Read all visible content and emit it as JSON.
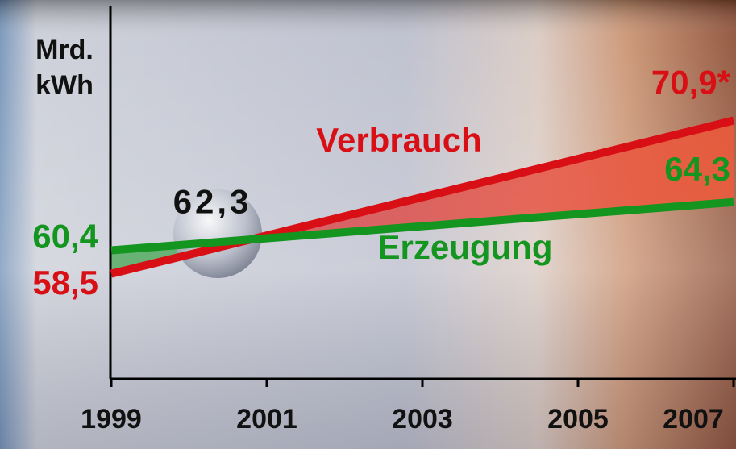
{
  "chart_data": {
    "type": "line",
    "y_label_lines": [
      "Mrd.",
      "kWh"
    ],
    "x": [
      1999,
      2007
    ],
    "xlim": [
      1999,
      2007
    ],
    "xticks": [
      1999,
      2001,
      2003,
      2005,
      2007
    ],
    "ylim": [
      50,
      80
    ],
    "series": [
      {
        "name": "Verbrauch",
        "color": "#d90f16",
        "values": [
          58.5,
          70.9
        ],
        "value_labels": [
          "58,5",
          "70,9*"
        ]
      },
      {
        "name": "Erzeugung",
        "color": "#13951f",
        "values": [
          60.4,
          64.3
        ],
        "value_labels": [
          "60,4",
          "64,3"
        ]
      }
    ],
    "annotations": [
      {
        "label": "62,3",
        "value": 62.3
      }
    ]
  }
}
